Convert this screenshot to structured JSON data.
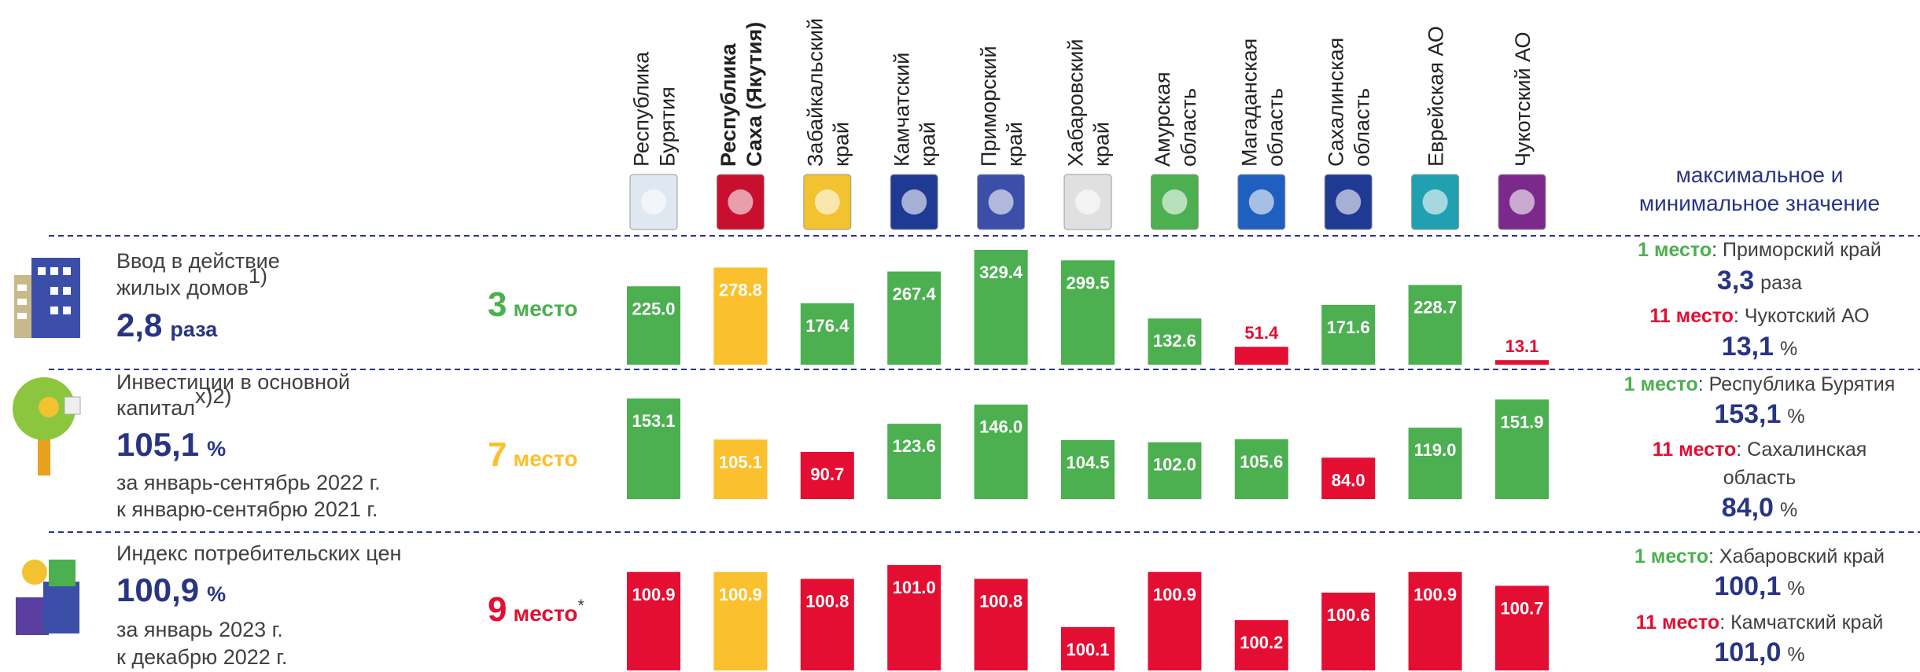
{
  "header": {
    "max_min": [
      "максимальное и",
      "минимальное значение"
    ]
  },
  "regions": [
    {
      "name": [
        "Республика",
        "Бурятия"
      ],
      "bold": false
    },
    {
      "name": [
        "Республика",
        "Саха (Якутия)"
      ],
      "bold": true
    },
    {
      "name": [
        "Забайкальский",
        "край"
      ],
      "bold": false
    },
    {
      "name": [
        "Камчатский",
        "край"
      ],
      "bold": false
    },
    {
      "name": [
        "Приморский",
        "край"
      ],
      "bold": false
    },
    {
      "name": [
        "Хабаровский",
        "край"
      ],
      "bold": false
    },
    {
      "name": [
        "Амурская",
        "область"
      ],
      "bold": false
    },
    {
      "name": [
        "Магаданская",
        "область"
      ],
      "bold": false
    },
    {
      "name": [
        "Сахалинская",
        "область"
      ],
      "bold": false
    },
    {
      "name": [
        "Еврейская АО"
      ],
      "bold": false
    },
    {
      "name": [
        "Чукотский АО"
      ],
      "bold": false
    }
  ],
  "rows": [
    {
      "title": [
        "Ввод в действие",
        "жилых домов"
      ],
      "footnote": "1)",
      "big": "2,8",
      "unit": "раза",
      "notes": [],
      "place": {
        "number": "3",
        "word": "место",
        "mark": "",
        "color": "#4caf50"
      },
      "best": {
        "place": "1 место",
        "region": [
          ": Приморский край"
        ],
        "value": "3,3",
        "unit": "раза"
      },
      "worst": {
        "place": "11 место",
        "region": [
          ": Чукотский АО"
        ],
        "value": "13,1",
        "unit": "%"
      }
    },
    {
      "title": [
        "Инвестиции в основной",
        "капитал"
      ],
      "footnote": "х)2)",
      "big": "105,1",
      "unit": "%",
      "notes": [
        "за январь-сентябрь 2022 г.",
        "к январю-сентябрю 2021 г."
      ],
      "place": {
        "number": "7",
        "word": "место",
        "mark": "",
        "color": "#fbc02d"
      },
      "best": {
        "place": "1 место",
        "region": [
          ": Республика Бурятия"
        ],
        "value": "153,1",
        "unit": "%"
      },
      "worst": {
        "place": "11 место",
        "region": [
          ": Сахалинская",
          "область"
        ],
        "value": "84,0",
        "unit": "%"
      }
    },
    {
      "title": [
        "Индекс потребительских цен"
      ],
      "footnote": "",
      "big": "100,9",
      "unit": "%",
      "notes": [
        "за январь 2023 г.",
        "к декабрю 2022 г."
      ],
      "place": {
        "number": "9",
        "word": "место",
        "mark": "*",
        "color": "#e30e32"
      },
      "best": {
        "place": "1 место",
        "region": [
          ": Хабаровский край"
        ],
        "value": "100,1",
        "unit": "%"
      },
      "worst": {
        "place": "11 место",
        "region": [
          ": Камчатский край"
        ],
        "value": "101,0",
        "unit": "%"
      }
    }
  ],
  "chart_data": [
    {
      "type": "bar",
      "values": [
        225.0,
        278.8,
        176.4,
        267.4,
        329.4,
        299.5,
        132.6,
        51.4,
        171.6,
        228.7,
        13.1
      ],
      "value_labels": [
        "225.0",
        "278.8",
        "176.4",
        "267.4",
        "329.4",
        "299.5",
        "132.6",
        "51.4",
        "171.6",
        "228.7",
        "13.1"
      ],
      "colors": [
        "#4caf50",
        "#fbc02d",
        "#4caf50",
        "#4caf50",
        "#4caf50",
        "#4caf50",
        "#4caf50",
        "#e30e32",
        "#4caf50",
        "#4caf50",
        "#e30e32"
      ]
    },
    {
      "type": "bar",
      "values": [
        153.1,
        105.1,
        90.7,
        123.6,
        146.0,
        104.5,
        102.0,
        105.6,
        84.0,
        119.0,
        151.9
      ],
      "value_labels": [
        "153.1",
        "105.1",
        "90.7",
        "123.6",
        "146.0",
        "104.5",
        "102.0",
        "105.6",
        "84.0",
        "119.0",
        "151.9"
      ],
      "colors": [
        "#4caf50",
        "#fbc02d",
        "#e30e32",
        "#4caf50",
        "#4caf50",
        "#4caf50",
        "#4caf50",
        "#4caf50",
        "#e30e32",
        "#4caf50",
        "#4caf50"
      ]
    },
    {
      "type": "bar",
      "values": [
        100.9,
        100.9,
        100.8,
        101.0,
        100.8,
        100.1,
        100.9,
        100.2,
        100.6,
        100.9,
        100.7
      ],
      "value_labels": [
        "100.9",
        "100.9",
        "100.8",
        "101.0",
        "100.8",
        "100.1",
        "100.9",
        "100.2",
        "100.6",
        "100.9",
        "100.7"
      ],
      "colors": [
        "#e30e32",
        "#fbc02d",
        "#e30e32",
        "#e30e32",
        "#e30e32",
        "#e30e32",
        "#e30e32",
        "#e30e32",
        "#e30e32",
        "#e30e32",
        "#e30e32"
      ]
    }
  ]
}
